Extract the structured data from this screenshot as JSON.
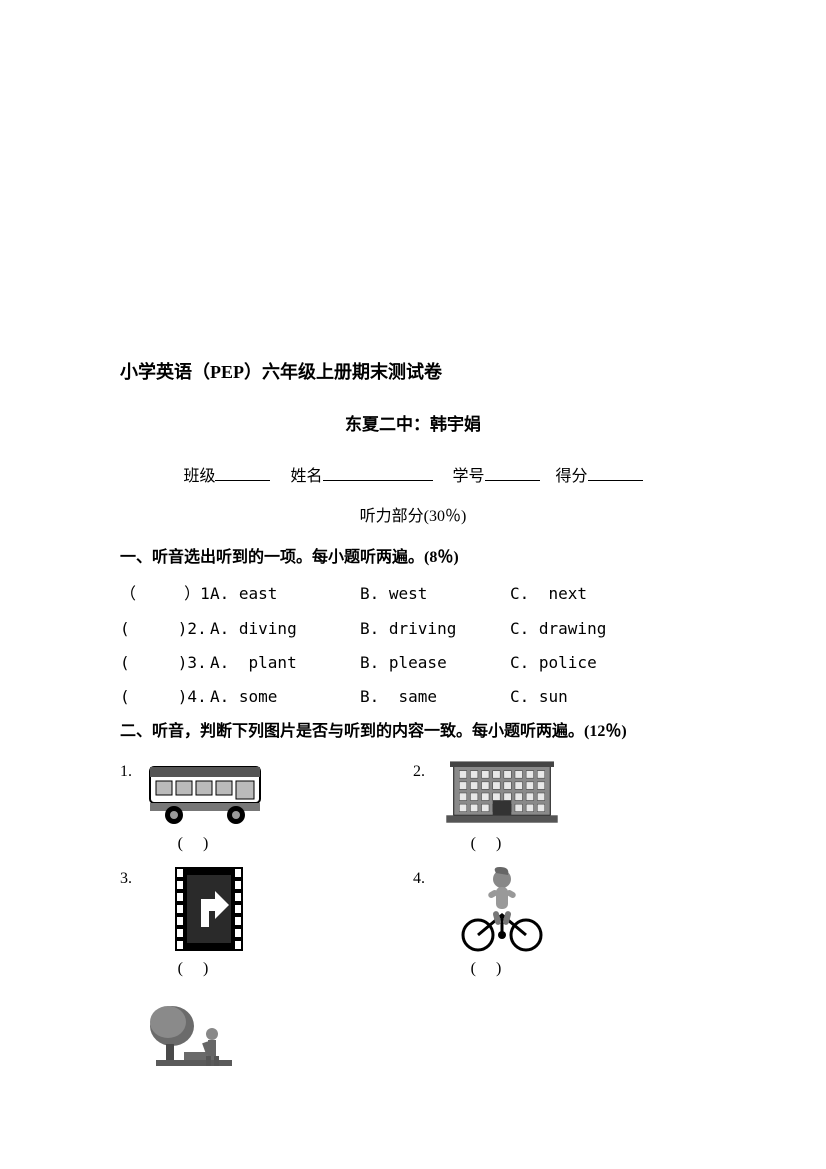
{
  "title": "小学英语（PEP）六年级上册期末测试卷",
  "subtitle": "东夏二中：韩宇娟",
  "info": {
    "class": "班级",
    "name": "姓名",
    "id": "学号",
    "score": "得分"
  },
  "listening_label": "听力部分(30％)",
  "section1": {
    "heading": "一、听音选出听到的一项。每小题听两遍。(8％)",
    "rows": [
      {
        "num": "（     ）1",
        "a": "A. east",
        "b": "B. west",
        "c": "C.  next"
      },
      {
        "num": "(     )2.",
        "a": "A. diving",
        "b": "B. driving",
        "c": "C. drawing"
      },
      {
        "num": "(     )3.",
        "a": "A.  plant",
        "b": "B. please",
        "c": "C. police"
      },
      {
        "num": "(     )4.",
        "a": "A. some",
        "b": "B.  same",
        "c": "C. sun"
      }
    ]
  },
  "section2": {
    "heading": "二、听音，判断下列图片是否与听到的内容一致。每小题听两遍。(12％)",
    "items": [
      {
        "num": "1.",
        "icon": "bus"
      },
      {
        "num": "2.",
        "icon": "building"
      },
      {
        "num": "3.",
        "icon": "turn-right"
      },
      {
        "num": "4.",
        "icon": "bike"
      }
    ],
    "paren": "(       )",
    "extra_icon": "worker"
  },
  "colors": {
    "text": "#000000",
    "bg": "#ffffff",
    "icon_fill": "#3a3a3a",
    "icon_light": "#d0d0d0"
  }
}
